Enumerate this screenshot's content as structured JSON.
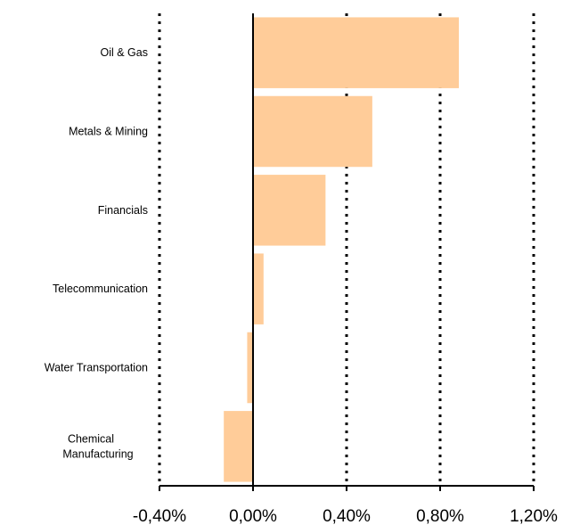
{
  "colors": {
    "bar": "#FFCC99",
    "axis": "#000000",
    "grid": "#000000"
  },
  "chart_data": {
    "type": "bar",
    "orientation": "horizontal",
    "categories": [
      "Oil & Gas",
      "Metals & Mining",
      "Financials",
      "Telecommunication",
      "Water Transportation",
      "Chemical Manufacturing"
    ],
    "category_label_lines": [
      [
        "Oil & Gas"
      ],
      [
        "Metals & Mining"
      ],
      [
        "Financials"
      ],
      [
        "Telecommunication"
      ],
      [
        "Water Transportation"
      ],
      [
        "Chemical",
        "Manufacturing"
      ]
    ],
    "values": [
      0.88,
      0.51,
      0.31,
      0.045,
      -0.025,
      -0.125
    ],
    "value_unit": "%",
    "xlim": [
      -0.4,
      1.2
    ],
    "xticks": [
      -0.4,
      0.0,
      0.4,
      0.8,
      1.2
    ],
    "xtick_labels": [
      "-0,40%",
      "0,00%",
      "0,40%",
      "0,80%",
      "1,20%"
    ],
    "grid": "vertical dotted lines at each x tick",
    "legend": "none",
    "title": "",
    "xlabel": "",
    "ylabel": ""
  }
}
